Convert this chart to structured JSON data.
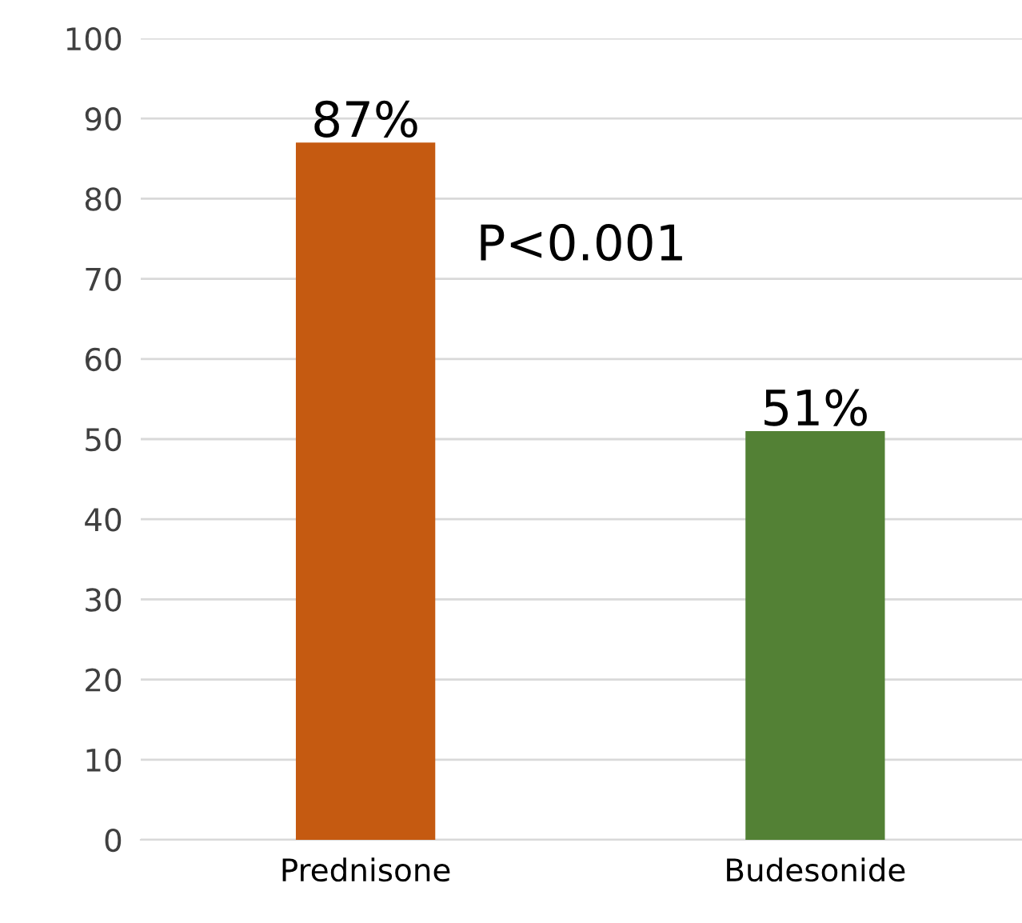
{
  "chart_data": {
    "type": "bar",
    "categories": [
      "Prednisone",
      "Budesonide"
    ],
    "values": [
      87,
      51
    ],
    "colors": [
      "#c55a11",
      "#538135"
    ],
    "value_labels": [
      "87%",
      "51%"
    ],
    "annotations": [
      "P<0.001"
    ],
    "ylim": [
      0,
      100
    ],
    "yticks": [
      0,
      10,
      20,
      30,
      40,
      50,
      60,
      70,
      80,
      90,
      100
    ],
    "grid": "y",
    "legend": false
  }
}
